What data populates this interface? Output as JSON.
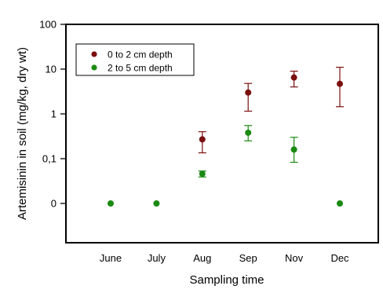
{
  "chart_data": {
    "type": "scatter",
    "xlabel": "Sampling time",
    "ylabel": "Artemisinin in soil (mg/kg, dry wt)",
    "y_scale": "log",
    "y_ticks": [
      {
        "value": 100,
        "label": "100"
      },
      {
        "value": 10,
        "label": "10"
      },
      {
        "value": 1,
        "label": "1"
      },
      {
        "value": 0.1,
        "label": "0,1"
      },
      {
        "value": 0.01,
        "label": "0"
      }
    ],
    "ylim": [
      0.001,
      100
    ],
    "categories": [
      "June",
      "July",
      "Aug",
      "Sep",
      "Nov",
      "Dec"
    ],
    "legend_position": "top-left",
    "grid": false,
    "error_bars": true,
    "series": [
      {
        "name": "0 to 2 cm depth",
        "color": "#7b0f0f",
        "points": [
          {
            "category": "Aug",
            "value": 0.27,
            "low": 0.135,
            "high": 0.4
          },
          {
            "category": "Sep",
            "value": 3.0,
            "low": 1.15,
            "high": 4.8
          },
          {
            "category": "Nov",
            "value": 6.5,
            "low": 4.0,
            "high": 9.0
          },
          {
            "category": "Dec",
            "value": 4.7,
            "low": 1.45,
            "high": 11.0
          }
        ]
      },
      {
        "name": "2 to 5 cm depth",
        "color": "#1a8a12",
        "points": [
          {
            "category": "June",
            "value": 0.01,
            "low": null,
            "high": null
          },
          {
            "category": "July",
            "value": 0.01,
            "low": null,
            "high": null
          },
          {
            "category": "Aug",
            "value": 0.046,
            "low": 0.039,
            "high": 0.053
          },
          {
            "category": "Sep",
            "value": 0.38,
            "low": 0.25,
            "high": 0.55
          },
          {
            "category": "Nov",
            "value": 0.16,
            "low": 0.083,
            "high": 0.3
          },
          {
            "category": "Dec",
            "value": 0.01,
            "low": null,
            "high": null
          }
        ]
      }
    ]
  }
}
